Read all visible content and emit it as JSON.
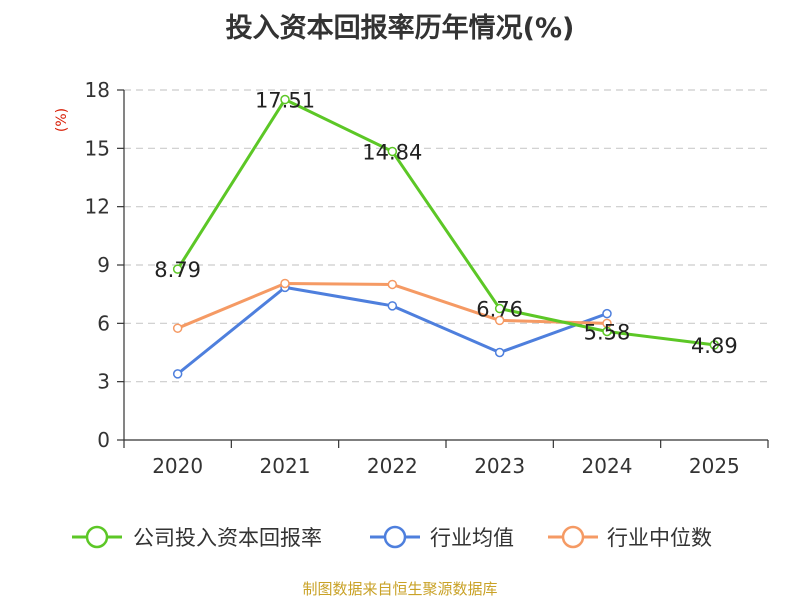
{
  "chart_data": {
    "type": "line",
    "title": "投入资本回报率历年情况(%)",
    "ylabel": "(%)",
    "xlabel": "",
    "categories": [
      "2020",
      "2021",
      "2022",
      "2023",
      "2024",
      "2025"
    ],
    "ylim": [
      0,
      18
    ],
    "yticks": [
      0,
      3,
      6,
      9,
      12,
      15,
      18
    ],
    "grid": true,
    "legend_position": "bottom",
    "series": [
      {
        "name": "公司投入资本回报率",
        "color": "#5cc726",
        "values": [
          8.79,
          17.51,
          14.84,
          6.76,
          5.58,
          4.89
        ],
        "labels": [
          "8.79",
          "17.51",
          "14.84",
          "6.76",
          "5.58",
          "4.89"
        ]
      },
      {
        "name": "行业均值",
        "color": "#4e7fdd",
        "values": [
          3.4,
          7.85,
          6.9,
          4.5,
          6.5,
          null
        ]
      },
      {
        "name": "行业中位数",
        "color": "#f59a64",
        "values": [
          5.75,
          8.05,
          8.0,
          6.15,
          6.0,
          null
        ]
      }
    ]
  },
  "source": "制图数据来自恒生聚源数据库"
}
